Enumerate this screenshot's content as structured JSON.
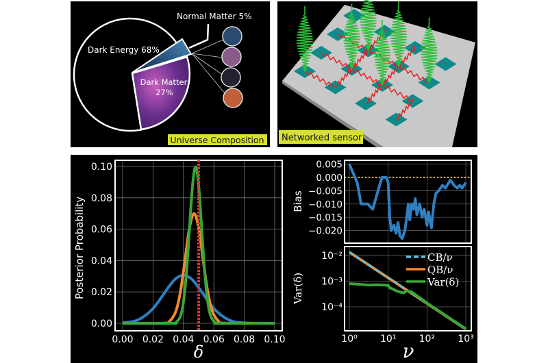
{
  "panels": {
    "universe": {
      "label": "Universe Composition",
      "dark_energy": "Dark Energy 68%",
      "dark_matter_line1": "Dark Matter",
      "dark_matter_line2": "27%",
      "normal_matter": "Normal Matter 5%",
      "label_bg": "#d6e12c"
    },
    "network": {
      "label": "Networked sensor",
      "label_bg": "#d6e12c"
    }
  },
  "chart_data": [
    {
      "type": "line",
      "xlabel": "δ",
      "ylabel": "Posterior Probability",
      "xlim": [
        0,
        0.1
      ],
      "ylim": [
        0,
        0.1
      ],
      "xticks": [
        "0.00",
        "0.02",
        "0.04",
        "0.06",
        "0.08",
        "0.10"
      ],
      "yticks": [
        "0.00",
        "0.02",
        "0.04",
        "0.06",
        "0.08",
        "0.10"
      ],
      "grid": true,
      "vline": {
        "x": 0.05,
        "color": "#e03030",
        "style": "dotted"
      },
      "series": [
        {
          "color": "#2f7fc1",
          "x": [
            0,
            0.01,
            0.02,
            0.03,
            0.035,
            0.04,
            0.045,
            0.05,
            0.06,
            0.07,
            0.08,
            0.1
          ],
          "y": [
            0.0003,
            0.0021,
            0.0094,
            0.0228,
            0.0285,
            0.0307,
            0.0285,
            0.0228,
            0.0094,
            0.0021,
            0.0003,
            0
          ]
        },
        {
          "color": "#f28a2e",
          "x": [
            0,
            0.027,
            0.031,
            0.035,
            0.038,
            0.041,
            0.044,
            0.047,
            0.05,
            0.053,
            0.056,
            0.059,
            0.063,
            0.067,
            0.1
          ],
          "y": [
            0,
            0.0001,
            0.0014,
            0.0076,
            0.02,
            0.04,
            0.061,
            0.07,
            0.061,
            0.04,
            0.02,
            0.0076,
            0.0014,
            0.0001,
            0
          ]
        },
        {
          "color": "#3aa53a",
          "x": [
            0,
            0.032,
            0.035,
            0.038,
            0.04,
            0.042,
            0.044,
            0.046,
            0.048,
            0.05,
            0.052,
            0.054,
            0.056,
            0.058,
            0.061,
            0.064,
            0.1
          ],
          "y": [
            0,
            0,
            0.0005,
            0.0044,
            0.0135,
            0.0324,
            0.0605,
            0.088,
            0.0997,
            0.088,
            0.0605,
            0.0324,
            0.0135,
            0.0044,
            0.0005,
            0,
            0
          ]
        }
      ]
    },
    {
      "type": "line",
      "ylabel": "Bias",
      "xscale": "log",
      "xlim": [
        1,
        1000
      ],
      "ylim": [
        -0.024,
        0.006
      ],
      "yticks": [
        "0.005",
        "0.000",
        "−0.005",
        "−0.010",
        "−0.015",
        "−0.020"
      ],
      "ytick_values": [
        0.005,
        0,
        -0.005,
        -0.01,
        -0.015,
        -0.02
      ],
      "grid": true,
      "hline": {
        "y": 0,
        "color": "#f5b041",
        "style": "dotted"
      },
      "series": [
        {
          "color": "#2f7fc1",
          "x": [
            1,
            1.6,
            2,
            3,
            4,
            6,
            7,
            9,
            10,
            11,
            12,
            14,
            16,
            18,
            20,
            23,
            27,
            30,
            33,
            36,
            40,
            45,
            50,
            55,
            65,
            75,
            85,
            100,
            110,
            130,
            150,
            170,
            200,
            250,
            300,
            400,
            450,
            500,
            600,
            700,
            800,
            1000
          ],
          "y": [
            0.005,
            -0.002,
            -0.01,
            -0.01,
            -0.012,
            -0.003,
            0.0,
            0.0,
            -0.002,
            -0.015,
            -0.02,
            -0.018,
            -0.021,
            -0.017,
            -0.022,
            -0.023,
            -0.02,
            -0.015,
            -0.01,
            -0.016,
            -0.01,
            -0.012,
            -0.008,
            -0.014,
            -0.01,
            -0.015,
            -0.012,
            -0.018,
            -0.013,
            -0.019,
            -0.01,
            -0.006,
            -0.005,
            -0.003,
            -0.004,
            -0.001,
            -0.002,
            -0.003,
            -0.004,
            -0.003,
            -0.004,
            -0.002
          ]
        }
      ]
    },
    {
      "type": "line",
      "xlabel": "ν",
      "ylabel": "Var(δ)",
      "xscale": "log",
      "yscale": "log",
      "xlim": [
        1,
        1000
      ],
      "ylim": [
        1e-05,
        0.03
      ],
      "xticks": [
        "10⁰",
        "10¹",
        "10²",
        "10³"
      ],
      "yticks": [
        "10⁻²",
        "10⁻³",
        "10⁻⁴"
      ],
      "grid": true,
      "legend": "top-right",
      "series": [
        {
          "name": "QB/ν",
          "color": "#f28a2e",
          "x": [
            1,
            1000
          ],
          "y": [
            0.0135,
            1.35e-05
          ]
        },
        {
          "name": "CB/ν",
          "color": "#5bc0de",
          "style": "dashed",
          "x": [
            1,
            1000
          ],
          "y": [
            0.0135,
            1.35e-05
          ]
        },
        {
          "name": "Var(δ)",
          "color": "#3aa53a",
          "x": [
            1,
            2,
            3,
            5,
            8,
            10,
            11,
            13,
            16,
            20,
            25,
            30,
            40,
            50,
            70,
            100,
            200,
            500,
            1000
          ],
          "y": [
            0.0008,
            0.00075,
            0.0007,
            0.00072,
            0.0007,
            0.00068,
            0.00055,
            0.0005,
            0.00042,
            0.00038,
            0.00035,
            0.00042,
            0.00038,
            0.0003,
            0.00021,
            0.00014,
            7e-05,
            2.8e-05,
            1.4e-05
          ]
        }
      ]
    }
  ]
}
